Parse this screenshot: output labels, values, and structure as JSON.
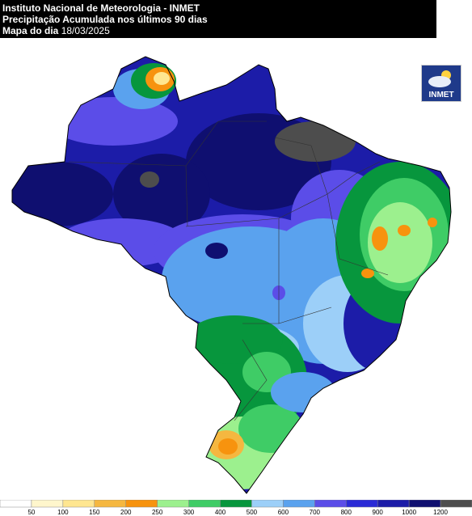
{
  "header": {
    "line1": "Instituto Nacional de Meteorologia - INMET",
    "line2": "Precipitação Acumulada nos últimos 90 dias",
    "date_label": "Mapa do dia",
    "date": "18/03/2025"
  },
  "logo": {
    "text": "INMET"
  },
  "legend": {
    "colors": [
      "#ffffff",
      "#fff6cc",
      "#ffe690",
      "#f5b740",
      "#f7930e",
      "#9cf08e",
      "#3fcc66",
      "#07963d",
      "#9ccff8",
      "#5aa2ee",
      "#5b4de8",
      "#2a2ad6",
      "#1c1ca8",
      "#0f0f70",
      "#4d4d4d"
    ],
    "ticks": [
      50,
      100,
      150,
      200,
      250,
      300,
      400,
      500,
      600,
      700,
      800,
      900,
      1000,
      1200
    ]
  }
}
